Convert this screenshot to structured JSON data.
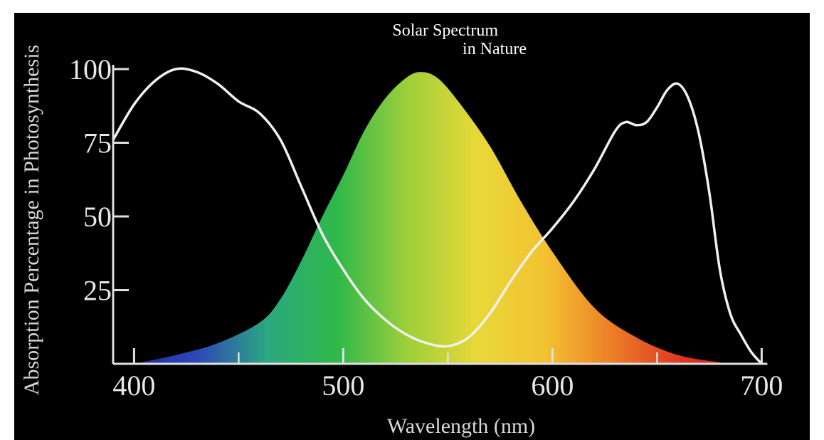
{
  "chart_data": {
    "type": "area",
    "xlabel": "Wavelength (nm)",
    "ylabel": "Absorption Percentage in Photosynthesis",
    "xlim": [
      390,
      700
    ],
    "ylim": [
      0,
      100
    ],
    "x_ticks_labeled": [
      400,
      500,
      600,
      700
    ],
    "x_ticks_minor": [
      450,
      550,
      650
    ],
    "y_ticks_labeled": [
      25,
      50,
      75,
      100
    ],
    "grid": false,
    "legend": "none",
    "annotation": {
      "line1": "Solar Spectrum",
      "line2": "in Nature"
    },
    "series": [
      {
        "kind": "filled-area-spectrum",
        "x": [
          400,
          420,
          440,
          460,
          470,
          480,
          490,
          500,
          510,
          520,
          530,
          537,
          545,
          555,
          570,
          585,
          600,
          620,
          640,
          660,
          680
        ],
        "y": [
          0,
          3,
          7,
          14,
          22,
          35,
          50,
          64,
          79,
          90,
          97,
          99,
          97,
          89,
          74,
          55,
          38,
          19,
          9,
          3,
          0.5
        ]
      },
      {
        "kind": "line",
        "x": [
          390,
          400,
          410,
          420,
          430,
          440,
          450,
          460,
          470,
          480,
          490,
          500,
          510,
          520,
          530,
          540,
          550,
          560,
          570,
          580,
          590,
          600,
          610,
          620,
          630,
          635,
          640,
          645,
          650,
          655,
          660,
          665,
          670,
          675,
          680,
          685,
          690,
          695,
          700
        ],
        "y": [
          76,
          88,
          96,
          100,
          99,
          95,
          89,
          85,
          76,
          60,
          44,
          32,
          22,
          15,
          10,
          7,
          6,
          9,
          17,
          28,
          38,
          46,
          55,
          66,
          79,
          82,
          81,
          82,
          87,
          93,
          95,
          90,
          78,
          58,
          32,
          17,
          10,
          4,
          0
        ]
      }
    ],
    "colors": {
      "background": "#000000",
      "line": "#f0f0f0",
      "axis": "#e0e0e0",
      "spectrum": [
        "#1d2a9a",
        "#2f47b8",
        "#2ba880",
        "#2eb84a",
        "#9ccf3a",
        "#e8d837",
        "#f3c232",
        "#ec7a26",
        "#e03322",
        "#c8111d"
      ]
    }
  }
}
